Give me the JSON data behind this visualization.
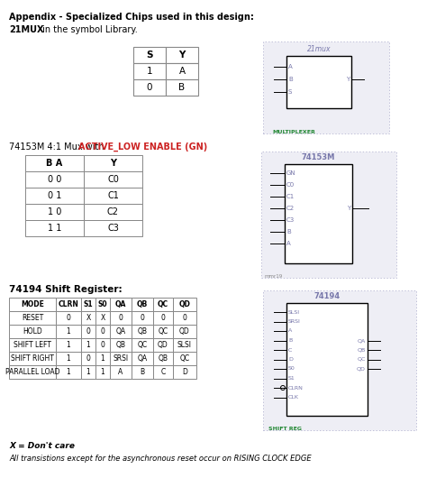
{
  "title1": "Appendix - Specialized Chips used in this design:",
  "title2_bold": "21MUX",
  "title2_rest": " in the symbol Library.",
  "mux_table": {
    "headers": [
      "S",
      "Y"
    ],
    "rows": [
      [
        "1",
        "A"
      ],
      [
        "0",
        "B"
      ]
    ]
  },
  "mux153_title": "74153M 4:1 Mux with ",
  "mux153_colored": "ACTIVE_LOW ENABLE (GN)",
  "mux153_table": {
    "headers": [
      "B A",
      "Y"
    ],
    "rows": [
      [
        "0 0",
        "C0"
      ],
      [
        "0 1",
        "C1"
      ],
      [
        "1 0",
        "C2"
      ],
      [
        "1 1",
        "C3"
      ]
    ]
  },
  "shift_title": "74194 Shift Register:",
  "shift_table": {
    "headers": [
      "MODE",
      "CLRN",
      "S1",
      "S0",
      "QA",
      "QB",
      "QC",
      "QD"
    ],
    "rows": [
      [
        "RESET",
        "0",
        "X",
        "X",
        "0",
        "0",
        "0",
        "0"
      ],
      [
        "HOLD",
        "1",
        "0",
        "0",
        "QA",
        "QB",
        "QC",
        "QD"
      ],
      [
        "SHIFT LEFT",
        "1",
        "1",
        "0",
        "QB",
        "QC",
        "QD",
        "SLSI"
      ],
      [
        "SHIFT RIGHT",
        "1",
        "0",
        "1",
        "SRSI",
        "QA",
        "QB",
        "QC"
      ],
      [
        "PARALLEL LOAD",
        "1",
        "1",
        "1",
        "A",
        "B",
        "C",
        "D"
      ]
    ]
  },
  "footnote1": "X = Don't care",
  "footnote2": "All transistions except for the asynchronous reset occur on RISING CLOCK EDGE",
  "chip_bg": "#eeeef5",
  "chip_border": "#aaaacc",
  "chip_text": "#7777aa",
  "red_color": "#cc2222",
  "green_label": "#228833"
}
